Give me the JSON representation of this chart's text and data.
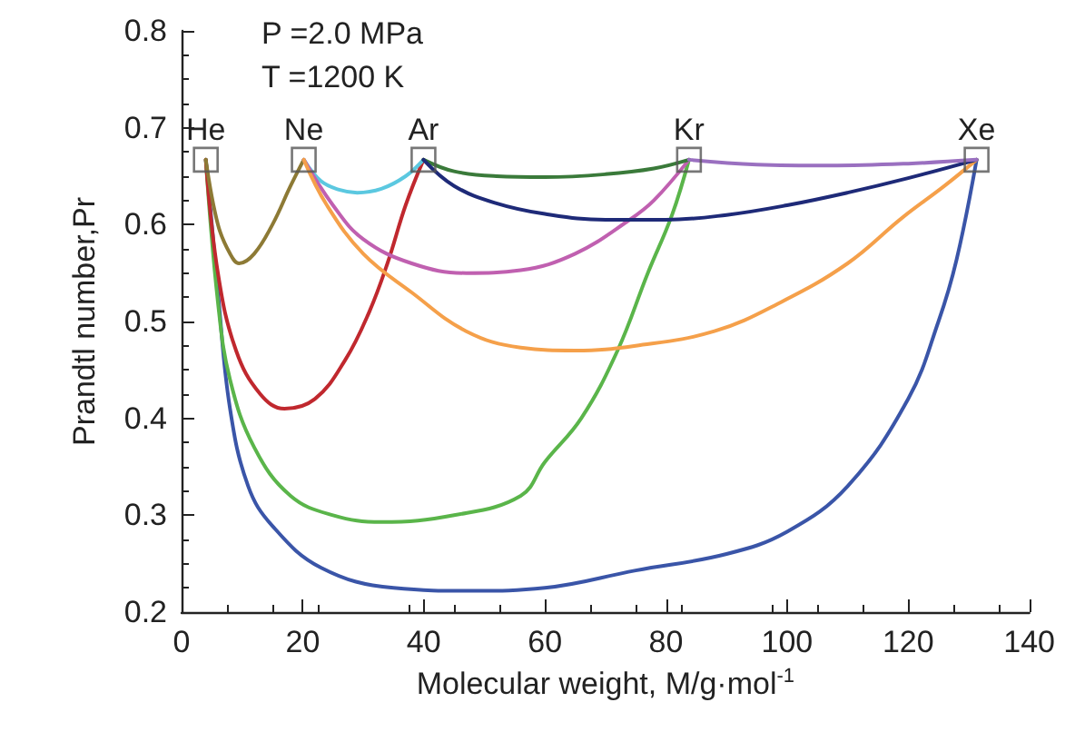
{
  "chart_data": {
    "type": "line",
    "xlabel": "Molecular weight, M/g·mol$^{-1}$",
    "ylabel": "Prandtl number,Pr",
    "xlim": [
      0,
      140
    ],
    "xticks": [
      0,
      20,
      40,
      60,
      80,
      100,
      120,
      140
    ],
    "ylim": [
      0.2,
      0.8
    ],
    "yticks": [
      0.2,
      0.3,
      0.4,
      0.5,
      0.6,
      0.7,
      0.8
    ],
    "grid": false,
    "marker": "none",
    "line_style": "solid",
    "annotations": [
      "P =2.0 MPa",
      "T =1200 K",
      {
        "text": "He",
        "x": 4,
        "y": 0.667
      },
      {
        "text": "Ne",
        "x": 20.18,
        "y": 0.667
      },
      {
        "text": "Ar",
        "x": 39.95,
        "y": 0.667
      },
      {
        "text": "Kr",
        "x": 83.8,
        "y": 0.667
      },
      {
        "text": "Xe",
        "x": 131.3,
        "y": 0.667
      }
    ],
    "series": [
      {
        "color": "#3a55a8",
        "x": [
          4,
          5,
          6,
          8,
          11,
          15,
          23,
          35,
          48,
          60,
          75,
          90,
          100,
          110,
          120,
          125,
          128,
          131.3
        ],
        "values": [
          0.667,
          0.6,
          0.53,
          0.41,
          0.33,
          0.289,
          0.246,
          0.225,
          0.222,
          0.225,
          0.243,
          0.26,
          0.283,
          0.33,
          0.42,
          0.5,
          0.564,
          0.667
        ]
      },
      {
        "color": "#5ab54a",
        "x": [
          4,
          6,
          8,
          12,
          18,
          25,
          33,
          45,
          56,
          60,
          66,
          72,
          77,
          81,
          83.8
        ],
        "values": [
          0.667,
          0.52,
          0.44,
          0.37,
          0.32,
          0.3,
          0.293,
          0.3,
          0.32,
          0.355,
          0.4,
          0.47,
          0.55,
          0.61,
          0.667
        ]
      },
      {
        "color": "#c0282e",
        "x": [
          4,
          6,
          9,
          13,
          17,
          22,
          27,
          31,
          34,
          37,
          39.95
        ],
        "values": [
          0.667,
          0.55,
          0.47,
          0.425,
          0.41,
          0.42,
          0.46,
          0.51,
          0.56,
          0.62,
          0.667
        ]
      },
      {
        "color": "#8d7a35",
        "x": [
          4,
          6,
          8,
          9.5,
          12,
          15,
          18,
          20.18
        ],
        "values": [
          0.667,
          0.6,
          0.57,
          0.56,
          0.57,
          0.6,
          0.64,
          0.667
        ]
      },
      {
        "color": "#5bc8e0",
        "x": [
          20.18,
          23,
          26,
          29,
          33,
          37,
          39.95
        ],
        "values": [
          0.667,
          0.645,
          0.636,
          0.633,
          0.637,
          0.65,
          0.667
        ]
      },
      {
        "color": "#c060b0",
        "x": [
          20.18,
          25,
          30,
          38,
          47,
          56,
          65,
          74,
          78,
          83.8
        ],
        "values": [
          0.667,
          0.62,
          0.585,
          0.56,
          0.55,
          0.553,
          0.57,
          0.605,
          0.625,
          0.667
        ]
      },
      {
        "color": "#f5a04a",
        "x": [
          20.18,
          24,
          30,
          38,
          47,
          56,
          65,
          75,
          88,
          99,
          110,
          119,
          126,
          131.3
        ],
        "values": [
          0.667,
          0.62,
          0.57,
          0.53,
          0.49,
          0.473,
          0.47,
          0.475,
          0.49,
          0.52,
          0.56,
          0.607,
          0.64,
          0.667
        ]
      },
      {
        "color": "#3a7a3a",
        "x": [
          39.95,
          45,
          52,
          60,
          70,
          78,
          83.8
        ],
        "values": [
          0.667,
          0.655,
          0.65,
          0.649,
          0.652,
          0.658,
          0.667
        ]
      },
      {
        "color": "#1e2a78",
        "x": [
          39.95,
          45,
          52,
          60,
          70,
          80,
          90,
          100,
          110,
          120,
          131.3
        ],
        "values": [
          0.667,
          0.64,
          0.622,
          0.611,
          0.605,
          0.605,
          0.61,
          0.62,
          0.633,
          0.648,
          0.667
        ]
      },
      {
        "color": "#9a70c0",
        "x": [
          83.8,
          95,
          107,
          120,
          131.3
        ],
        "values": [
          0.667,
          0.662,
          0.661,
          0.663,
          0.667
        ]
      },
      {
        "type": "scatter",
        "marker": "square",
        "color": "#555555",
        "x": [
          4,
          20.18,
          39.95,
          83.8,
          131.3
        ],
        "values": [
          0.667,
          0.667,
          0.667,
          0.667,
          0.667
        ]
      }
    ]
  }
}
